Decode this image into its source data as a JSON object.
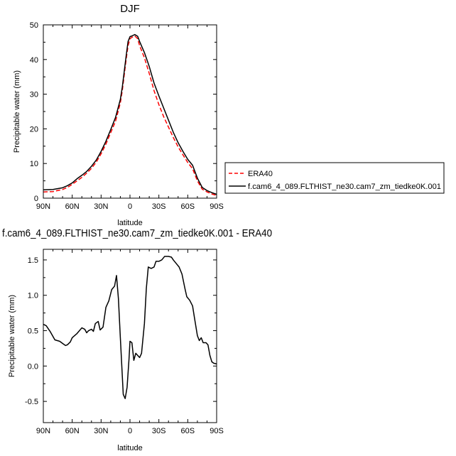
{
  "chart_data": [
    {
      "type": "line",
      "title": "DJF",
      "xlabel": "latitude",
      "ylabel": "Precipitable water (mm)",
      "xlim": [
        90,
        -90
      ],
      "ylim": [
        0,
        50
      ],
      "xticks": [
        90,
        60,
        30,
        0,
        -30,
        -60,
        -90
      ],
      "xtick_labels": [
        "90N",
        "60N",
        "30N",
        "0",
        "30S",
        "60S",
        "90S"
      ],
      "yticks": [
        0,
        10,
        20,
        30,
        40,
        50
      ],
      "ytick_labels": [
        "0",
        "10",
        "20",
        "30",
        "40",
        "50"
      ],
      "legend_position": "right",
      "series": [
        {
          "name": "ERA40",
          "color": "#ff0000",
          "dash": "dashed",
          "points": [
            [
              90,
              1.8
            ],
            [
              80,
              1.9
            ],
            [
              70,
              2.5
            ],
            [
              65,
              3.1
            ],
            [
              60,
              4.0
            ],
            [
              55,
              5.0
            ],
            [
              50,
              6.0
            ],
            [
              45,
              7.2
            ],
            [
              40,
              8.6
            ],
            [
              35,
              10.4
            ],
            [
              30,
              12.8
            ],
            [
              25,
              15.6
            ],
            [
              20,
              18.9
            ],
            [
              15,
              22.2
            ],
            [
              10,
              27.5
            ],
            [
              8,
              31.0
            ],
            [
              6,
              35.5
            ],
            [
              4,
              40.0
            ],
            [
              2,
              44.0
            ],
            [
              0,
              46.0
            ],
            [
              -2,
              46.4
            ],
            [
              -5,
              46.8
            ],
            [
              -8,
              46.0
            ],
            [
              -10,
              44.0
            ],
            [
              -15,
              40.5
            ],
            [
              -20,
              36.0
            ],
            [
              -25,
              31.0
            ],
            [
              -30,
              27.0
            ],
            [
              -35,
              23.5
            ],
            [
              -40,
              20.5
            ],
            [
              -45,
              17.5
            ],
            [
              -50,
              14.8
            ],
            [
              -55,
              12.5
            ],
            [
              -60,
              10.3
            ],
            [
              -65,
              8.5
            ],
            [
              -70,
              5.0
            ],
            [
              -75,
              2.6
            ],
            [
              -80,
              1.8
            ],
            [
              -85,
              1.2
            ],
            [
              -90,
              0.8
            ]
          ]
        },
        {
          "name": "f.cam6_4_089.FLTHIST_ne30.cam7_zm_tiedke0K.001",
          "color": "#000000",
          "dash": "solid",
          "points": [
            [
              90,
              2.4
            ],
            [
              80,
              2.5
            ],
            [
              70,
              3.0
            ],
            [
              65,
              3.6
            ],
            [
              60,
              4.4
            ],
            [
              55,
              5.6
            ],
            [
              50,
              6.6
            ],
            [
              45,
              7.7
            ],
            [
              40,
              9.2
            ],
            [
              35,
              11.0
            ],
            [
              30,
              13.5
            ],
            [
              25,
              16.4
            ],
            [
              20,
              19.8
            ],
            [
              15,
              23.3
            ],
            [
              10,
              28.5
            ],
            [
              8,
              32.0
            ],
            [
              6,
              36.5
            ],
            [
              4,
              41.0
            ],
            [
              2,
              45.2
            ],
            [
              0,
              46.6
            ],
            [
              -2,
              46.8
            ],
            [
              -5,
              47.2
            ],
            [
              -8,
              46.7
            ],
            [
              -10,
              45.2
            ],
            [
              -15,
              42.0
            ],
            [
              -20,
              38.0
            ],
            [
              -25,
              33.2
            ],
            [
              -30,
              29.5
            ],
            [
              -35,
              26.0
            ],
            [
              -40,
              22.5
            ],
            [
              -45,
              19.0
            ],
            [
              -50,
              16.0
            ],
            [
              -55,
              13.5
            ],
            [
              -60,
              11.2
            ],
            [
              -65,
              9.5
            ],
            [
              -70,
              5.8
            ],
            [
              -75,
              3.1
            ],
            [
              -80,
              2.2
            ],
            [
              -85,
              1.6
            ],
            [
              -90,
              1.1
            ]
          ]
        }
      ]
    },
    {
      "type": "line",
      "title": "f.cam6_4_089.FLTHIST_ne30.cam7_zm_tiedke0K.001 - ERA40",
      "xlabel": "latitude",
      "ylabel": "Precipitable water (mm)",
      "xlim": [
        90,
        -90
      ],
      "ylim": [
        -0.8,
        1.65
      ],
      "xticks": [
        90,
        60,
        30,
        0,
        -30,
        -60,
        -90
      ],
      "xtick_labels": [
        "90N",
        "60N",
        "30N",
        "0",
        "30S",
        "60S",
        "90S"
      ],
      "yticks": [
        -0.5,
        0.0,
        0.5,
        1.0,
        1.5
      ],
      "ytick_labels": [
        "-0.5",
        "0.0",
        "0.5",
        "1.0",
        "1.5"
      ],
      "series": [
        {
          "color": "#000000",
          "dash": "solid",
          "points": [
            [
              90,
              0.59
            ],
            [
              87,
              0.57
            ],
            [
              83,
              0.49
            ],
            [
              78,
              0.37
            ],
            [
              73,
              0.35
            ],
            [
              70,
              0.32
            ],
            [
              67,
              0.29
            ],
            [
              65,
              0.3
            ],
            [
              62,
              0.34
            ],
            [
              60,
              0.4
            ],
            [
              55,
              0.46
            ],
            [
              50,
              0.54
            ],
            [
              47,
              0.52
            ],
            [
              45,
              0.47
            ],
            [
              43,
              0.5
            ],
            [
              40,
              0.52
            ],
            [
              38,
              0.49
            ],
            [
              36,
              0.6
            ],
            [
              33,
              0.63
            ],
            [
              31,
              0.51
            ],
            [
              28,
              0.55
            ],
            [
              25,
              0.83
            ],
            [
              22,
              0.92
            ],
            [
              19,
              1.08
            ],
            [
              16,
              1.13
            ],
            [
              14,
              1.28
            ],
            [
              12,
              0.95
            ],
            [
              10,
              0.4
            ],
            [
              7,
              -0.4
            ],
            [
              5,
              -0.46
            ],
            [
              3,
              -0.3
            ],
            [
              1,
              0.1
            ],
            [
              0,
              0.35
            ],
            [
              -2,
              0.33
            ],
            [
              -4,
              0.08
            ],
            [
              -6,
              0.18
            ],
            [
              -8,
              0.15
            ],
            [
              -10,
              0.12
            ],
            [
              -12,
              0.18
            ],
            [
              -15,
              0.6
            ],
            [
              -17,
              1.1
            ],
            [
              -19,
              1.4
            ],
            [
              -22,
              1.38
            ],
            [
              -25,
              1.4
            ],
            [
              -27,
              1.48
            ],
            [
              -30,
              1.48
            ],
            [
              -33,
              1.5
            ],
            [
              -36,
              1.55
            ],
            [
              -40,
              1.55
            ],
            [
              -43,
              1.54
            ],
            [
              -45,
              1.5
            ],
            [
              -48,
              1.45
            ],
            [
              -51,
              1.4
            ],
            [
              -54,
              1.3
            ],
            [
              -57,
              1.1
            ],
            [
              -59,
              0.98
            ],
            [
              -62,
              0.93
            ],
            [
              -65,
              0.85
            ],
            [
              -67,
              0.68
            ],
            [
              -70,
              0.43
            ],
            [
              -72,
              0.36
            ],
            [
              -74,
              0.4
            ],
            [
              -76,
              0.33
            ],
            [
              -79,
              0.33
            ],
            [
              -81,
              0.3
            ],
            [
              -83,
              0.15
            ],
            [
              -85,
              0.06
            ],
            [
              -87,
              0.04
            ],
            [
              -90,
              0.03
            ]
          ]
        }
      ]
    }
  ]
}
